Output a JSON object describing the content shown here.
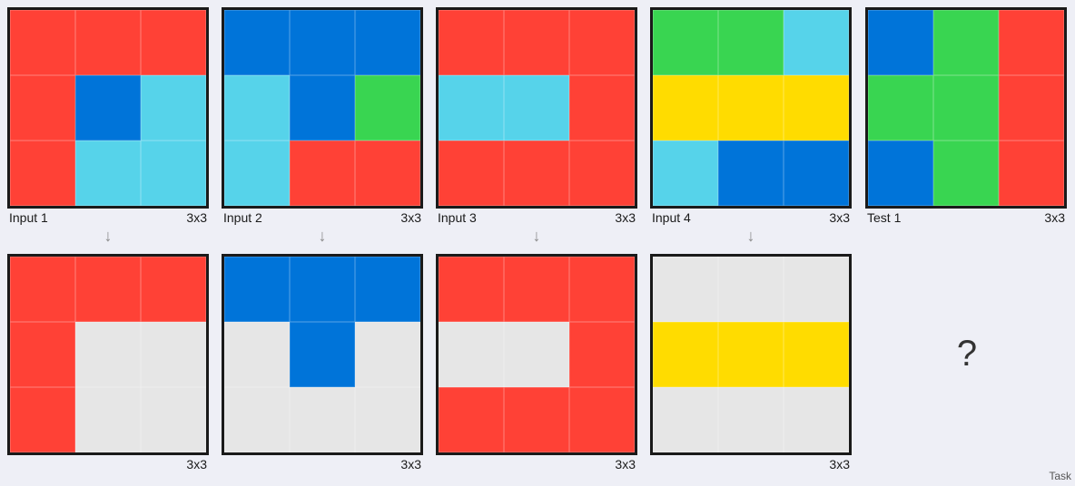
{
  "colors": {
    "R": "#ff4136",
    "B": "#0074d9",
    "C": "#56d3ea",
    "G": "#39d551",
    "Y": "#ffdc00",
    "E": "#e6e6e6"
  },
  "pairs": [
    {
      "input_label": "Input 1",
      "input_size": "3x3",
      "input": [
        [
          "R",
          "R",
          "R"
        ],
        [
          "R",
          "B",
          "C"
        ],
        [
          "R",
          "C",
          "C"
        ]
      ],
      "output_size": "3x3",
      "output": [
        [
          "R",
          "R",
          "R"
        ],
        [
          "R",
          "E",
          "E"
        ],
        [
          "R",
          "E",
          "E"
        ]
      ]
    },
    {
      "input_label": "Input 2",
      "input_size": "3x3",
      "input": [
        [
          "B",
          "B",
          "B"
        ],
        [
          "C",
          "B",
          "G"
        ],
        [
          "C",
          "R",
          "R"
        ]
      ],
      "output_size": "3x3",
      "output": [
        [
          "B",
          "B",
          "B"
        ],
        [
          "E",
          "B",
          "E"
        ],
        [
          "E",
          "E",
          "E"
        ]
      ]
    },
    {
      "input_label": "Input 3",
      "input_size": "3x3",
      "input": [
        [
          "R",
          "R",
          "R"
        ],
        [
          "C",
          "C",
          "R"
        ],
        [
          "R",
          "R",
          "R"
        ]
      ],
      "output_size": "3x3",
      "output": [
        [
          "R",
          "R",
          "R"
        ],
        [
          "E",
          "E",
          "R"
        ],
        [
          "R",
          "R",
          "R"
        ]
      ]
    },
    {
      "input_label": "Input 4",
      "input_size": "3x3",
      "input": [
        [
          "G",
          "G",
          "C"
        ],
        [
          "Y",
          "Y",
          "Y"
        ],
        [
          "C",
          "B",
          "B"
        ]
      ],
      "output_size": "3x3",
      "output": [
        [
          "E",
          "E",
          "E"
        ],
        [
          "Y",
          "Y",
          "Y"
        ],
        [
          "E",
          "E",
          "E"
        ]
      ]
    }
  ],
  "test": {
    "label": "Test 1",
    "size": "3x3",
    "input": [
      [
        "B",
        "G",
        "R"
      ],
      [
        "G",
        "G",
        "R"
      ],
      [
        "B",
        "G",
        "R"
      ]
    ],
    "unknown_output": "?"
  },
  "arrow_glyph": "↓",
  "footer": "Task"
}
